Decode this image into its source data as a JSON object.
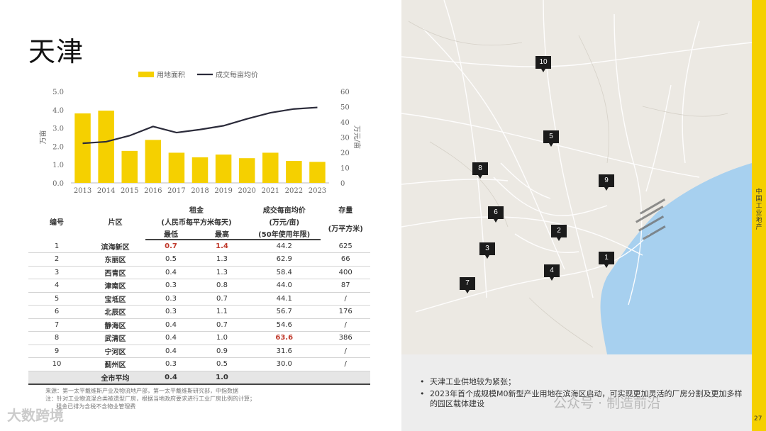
{
  "page": {
    "title": "天津",
    "page_number": "27",
    "sidebar_label": "中国工业地产"
  },
  "chart_data": {
    "type": "bar",
    "categories": [
      "2013",
      "2014",
      "2015",
      "2016",
      "2017",
      "2018",
      "2019",
      "2020",
      "2021",
      "2022",
      "2023"
    ],
    "series": [
      {
        "name": "用地面积",
        "type": "bar",
        "axis": "left",
        "color": "#f5d000",
        "values": [
          3.8,
          3.95,
          1.75,
          2.35,
          1.65,
          1.4,
          1.55,
          1.35,
          1.65,
          1.2,
          1.15
        ]
      },
      {
        "name": "成交每亩均价",
        "type": "line",
        "axis": "right",
        "color": "#2b2b3a",
        "values": [
          26,
          27,
          31,
          37,
          33,
          35,
          37.5,
          42,
          46,
          48.5,
          49.5
        ]
      }
    ],
    "ylabel": "万亩",
    "y2label": "万元/亩",
    "ylim": [
      0,
      5
    ],
    "y2lim": [
      0,
      60
    ],
    "yticks": [
      "0.0",
      "1.0",
      "2.0",
      "3.0",
      "4.0",
      "5.0"
    ],
    "y2ticks": [
      "0",
      "10",
      "20",
      "30",
      "40",
      "50",
      "60"
    ],
    "legend_position": "top"
  },
  "table": {
    "headers": {
      "no": "编号",
      "district": "片区",
      "rent": "租金",
      "rent_unit": "(人民币每平方米每天)",
      "rent_min": "最低",
      "rent_max": "最高",
      "price": "成交每亩均价",
      "price_unit": "(万元/亩)",
      "price_note": "(50年使用年限)",
      "stock": "存量",
      "stock_unit": "(万平方米)"
    },
    "rows": [
      [
        "1",
        "滨海新区",
        "0.7",
        "1.4",
        "44.2",
        "625"
      ],
      [
        "2",
        "东丽区",
        "0.5",
        "1.3",
        "62.9",
        "66"
      ],
      [
        "3",
        "西青区",
        "0.4",
        "1.3",
        "58.4",
        "400"
      ],
      [
        "4",
        "津南区",
        "0.3",
        "0.8",
        "44.0",
        "87"
      ],
      [
        "5",
        "宝坻区",
        "0.3",
        "0.7",
        "44.1",
        "/"
      ],
      [
        "6",
        "北辰区",
        "0.3",
        "1.1",
        "56.7",
        "176"
      ],
      [
        "7",
        "静海区",
        "0.4",
        "0.7",
        "54.6",
        "/"
      ],
      [
        "8",
        "武清区",
        "0.4",
        "1.0",
        "63.6",
        "386"
      ],
      [
        "9",
        "宁河区",
        "0.4",
        "0.9",
        "31.6",
        "/"
      ],
      [
        "10",
        "蓟州区",
        "0.3",
        "0.5",
        "30.0",
        "/"
      ]
    ],
    "average": [
      "全市平均",
      "0.4",
      "1.0"
    ],
    "highlight_color": "#c0392b"
  },
  "source_note": "来源：第一太平戴维斯产业及物流地产部，第一太平戴维斯研究部，中指数据\n注：针对工业物流混合类被遗型厂房，根据当地政府要求进行工业厂房比例的计算；\n      租金已排为含税不含物业管理费",
  "map": {
    "markers": [
      "1",
      "2",
      "3",
      "4",
      "5",
      "6",
      "7",
      "8",
      "9",
      "10"
    ]
  },
  "notes": [
    "天津工业供地较为紧张；",
    "2023年首个成规模M0新型产业用地在滨海区启动，可实现更加灵活的厂房分割及更加多样的园区载体建设"
  ],
  "watermarks": {
    "left": "大数跨境",
    "right": "公众号 · 制造前沿"
  }
}
